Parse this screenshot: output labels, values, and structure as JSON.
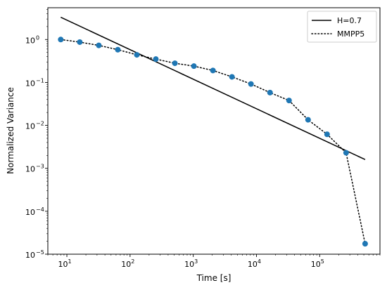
{
  "chart_data": {
    "type": "line",
    "xlabel": "Time [s]",
    "ylabel": "Normalized Variance",
    "x_scale": "log",
    "y_scale": "log",
    "xlim": [
      5,
      900000
    ],
    "ylim": [
      1e-05,
      5.5
    ],
    "grid": false,
    "legend_position": "top-right",
    "x_ticks": [
      {
        "base": "10",
        "exp": "1",
        "value": 10
      },
      {
        "base": "10",
        "exp": "2",
        "value": 100
      },
      {
        "base": "10",
        "exp": "3",
        "value": 1000
      },
      {
        "base": "10",
        "exp": "4",
        "value": 10000
      },
      {
        "base": "10",
        "exp": "5",
        "value": 100000
      }
    ],
    "y_ticks": [
      {
        "base": "10",
        "exp": "0",
        "value": 1
      },
      {
        "base": "10",
        "exp": "−1",
        "value": 0.1
      },
      {
        "base": "10",
        "exp": "−2",
        "value": 0.01
      },
      {
        "base": "10",
        "exp": "−3",
        "value": 0.001
      },
      {
        "base": "10",
        "exp": "−4",
        "value": 0.0001
      },
      {
        "base": "10",
        "exp": "−5",
        "value": 1e-05
      }
    ],
    "series": [
      {
        "name": "H=0.7",
        "style": "solid",
        "color": "#000000",
        "markers": false,
        "x": [
          8,
          524288
        ],
        "y": [
          3.3,
          0.0016
        ]
      },
      {
        "name": "MMPP5",
        "style": "dotted",
        "color": "#000000",
        "markers": true,
        "marker_color": "#1f77b4",
        "x": [
          8,
          16,
          32,
          64,
          128,
          256,
          512,
          1024,
          2048,
          4096,
          8192,
          16384,
          32768,
          65536,
          131072,
          262144,
          524288
        ],
        "y": [
          1.0,
          0.87,
          0.73,
          0.58,
          0.44,
          0.35,
          0.28,
          0.24,
          0.19,
          0.135,
          0.092,
          0.058,
          0.038,
          0.0135,
          0.0062,
          0.0023,
          1.75e-05
        ]
      }
    ]
  }
}
